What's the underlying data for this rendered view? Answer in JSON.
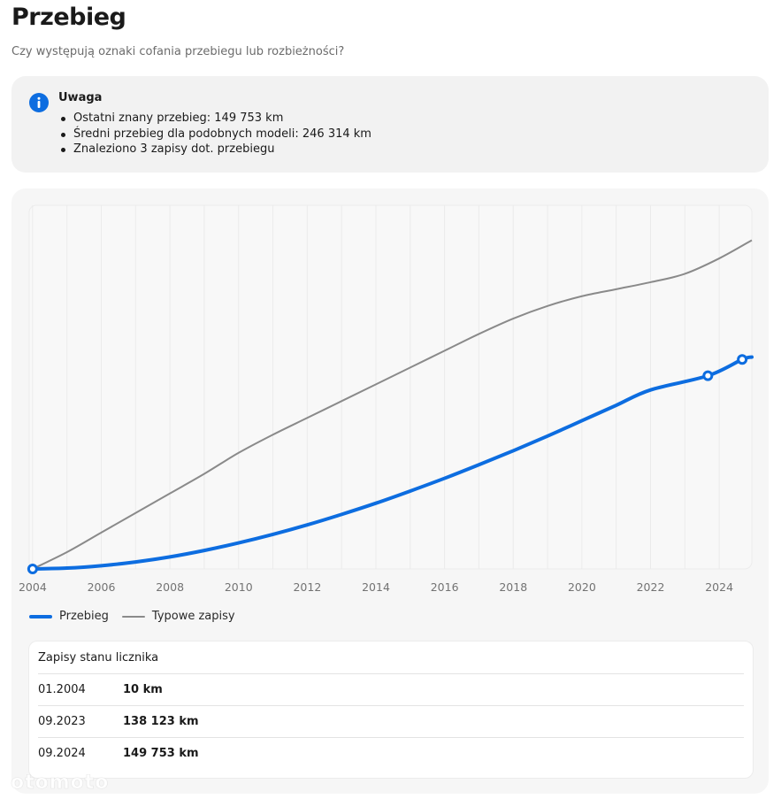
{
  "header": {
    "title": "Przebieg",
    "subtitle": "Czy występują oznaki cofania przebiegu lub rozbieżności?"
  },
  "notice": {
    "icon": "info-icon",
    "title": "Uwaga",
    "items": [
      "Ostatni znany przebieg: 149 753 km",
      "Średni przebieg dla podobnych modeli: 246 314 km",
      "Znaleziono 3 zapisy dot. przebiegu"
    ]
  },
  "colors": {
    "accent": "#0d6de0",
    "typical": "#8a8a8a"
  },
  "chart_data": {
    "type": "line",
    "title": "",
    "xlabel": "",
    "ylabel": "",
    "xlim": [
      2003.9,
      2024.95
    ],
    "ylim": [
      0,
      260000
    ],
    "x_ticks": [
      "2004",
      "2006",
      "2008",
      "2010",
      "2012",
      "2014",
      "2016",
      "2018",
      "2020",
      "2022",
      "2024"
    ],
    "grid": true,
    "legend": [
      "Przebieg",
      "Typowe zapisy"
    ],
    "series": [
      {
        "name": "Przebieg",
        "color": "#0d6de0",
        "x": [
          2004.0,
          2005,
          2006,
          2007,
          2008,
          2009,
          2010,
          2011,
          2012,
          2013,
          2014,
          2015,
          2016,
          2017,
          2018,
          2019,
          2020,
          2021,
          2022,
          2023.67,
          2024.67,
          2024.95
        ],
        "y": [
          10,
          600,
          2300,
          5000,
          8600,
          13200,
          18600,
          24700,
          31500,
          39000,
          47000,
          55700,
          64800,
          74500,
          84500,
          95000,
          106000,
          117000,
          128000,
          138123,
          149753,
          151500
        ],
        "markers": [
          {
            "x": 2004.0,
            "y": 10
          },
          {
            "x": 2023.67,
            "y": 138123
          },
          {
            "x": 2024.67,
            "y": 149753
          }
        ]
      },
      {
        "name": "Typowe zapisy",
        "color": "#8a8a8a",
        "x": [
          2004.0,
          2005,
          2006,
          2007,
          2008,
          2009,
          2010,
          2011,
          2012,
          2013,
          2014,
          2015,
          2016,
          2017,
          2018,
          2019,
          2020,
          2021,
          2022,
          2023,
          2024,
          2024.95
        ],
        "y": [
          0,
          12000,
          26000,
          40000,
          54000,
          68000,
          83000,
          96000,
          108000,
          120000,
          132000,
          144000,
          156000,
          168000,
          179000,
          188000,
          195000,
          200000,
          205000,
          211000,
          222000,
          235000
        ]
      }
    ]
  },
  "legend": {
    "przebieg_label": "Przebieg",
    "typowe_label": "Typowe zapisy"
  },
  "records": {
    "title": "Zapisy stanu licznika",
    "rows": [
      {
        "date": "01.2004",
        "value": "10 km"
      },
      {
        "date": "09.2023",
        "value": "138 123 km"
      },
      {
        "date": "09.2024",
        "value": "149 753 km"
      }
    ]
  },
  "watermark": "otomoto"
}
